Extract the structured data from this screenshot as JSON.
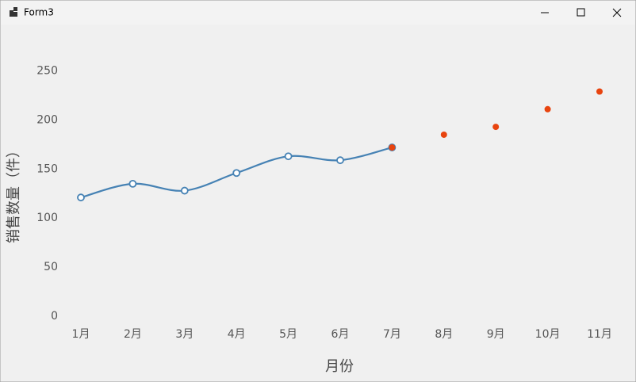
{
  "window": {
    "title": "Form3"
  },
  "chart_data": {
    "type": "line",
    "x_label": "月份",
    "y_label": "销售数量（件）",
    "categories": [
      "1月",
      "2月",
      "3月",
      "4月",
      "5月",
      "6月",
      "7月",
      "8月",
      "9月",
      "10月",
      "11月"
    ],
    "series": [
      {
        "type": "line",
        "color": "#4682b4",
        "values": [
          121,
          135,
          128,
          146,
          163,
          159,
          172,
          null,
          null,
          null,
          null
        ]
      },
      {
        "type": "scatter",
        "color": "#e8440f",
        "values": [
          null,
          null,
          null,
          null,
          null,
          null,
          172,
          185,
          193,
          211,
          229
        ]
      }
    ],
    "ylim": [
      0,
      290
    ],
    "yticks": [
      0,
      50,
      100,
      150,
      200,
      250
    ],
    "grid": false
  }
}
